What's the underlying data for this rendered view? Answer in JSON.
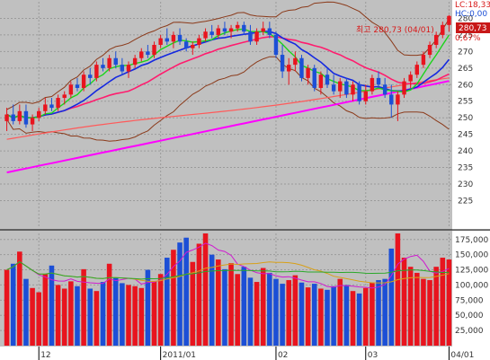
{
  "chart_data": [
    {
      "type": "candlestick",
      "title": "",
      "ylim": [
        217,
        285
      ],
      "y_ticks": [
        225,
        230,
        235,
        240,
        245,
        250,
        255,
        260,
        265,
        270,
        275,
        280
      ],
      "grid": true,
      "colors": {
        "up": "#e8141e",
        "down": "#1c4fd6",
        "background": "#c0c0c0",
        "axis_bg": "#ffffff",
        "grid": "#9a9a9a"
      },
      "annotations": {
        "high_label": "최고 280,73 (04/01)",
        "last_price": "280,73",
        "corner_top": "LC:18,33",
        "corner_mid": "HC:0,00",
        "change": "0,67%"
      },
      "candles": [
        {
          "o": 249,
          "h": 253,
          "l": 246,
          "c": 251
        },
        {
          "o": 251,
          "h": 254,
          "l": 248,
          "c": 249
        },
        {
          "o": 249,
          "h": 254,
          "l": 248,
          "c": 252
        },
        {
          "o": 252,
          "h": 254,
          "l": 247,
          "c": 248
        },
        {
          "o": 248,
          "h": 251,
          "l": 246,
          "c": 250
        },
        {
          "o": 250,
          "h": 253,
          "l": 249,
          "c": 252
        },
        {
          "o": 252,
          "h": 256,
          "l": 251,
          "c": 254
        },
        {
          "o": 254,
          "h": 256,
          "l": 252,
          "c": 253
        },
        {
          "o": 253,
          "h": 257,
          "l": 252,
          "c": 256
        },
        {
          "o": 256,
          "h": 258,
          "l": 254,
          "c": 257
        },
        {
          "o": 257,
          "h": 261,
          "l": 256,
          "c": 260
        },
        {
          "o": 260,
          "h": 262,
          "l": 258,
          "c": 259
        },
        {
          "o": 259,
          "h": 264,
          "l": 258,
          "c": 263
        },
        {
          "o": 263,
          "h": 265,
          "l": 260,
          "c": 262
        },
        {
          "o": 262,
          "h": 267,
          "l": 261,
          "c": 266
        },
        {
          "o": 266,
          "h": 268,
          "l": 264,
          "c": 265
        },
        {
          "o": 265,
          "h": 269,
          "l": 264,
          "c": 268
        },
        {
          "o": 268,
          "h": 270,
          "l": 265,
          "c": 266
        },
        {
          "o": 266,
          "h": 268,
          "l": 263,
          "c": 264
        },
        {
          "o": 264,
          "h": 267,
          "l": 262,
          "c": 266
        },
        {
          "o": 266,
          "h": 269,
          "l": 265,
          "c": 268
        },
        {
          "o": 268,
          "h": 271,
          "l": 267,
          "c": 270
        },
        {
          "o": 270,
          "h": 272,
          "l": 268,
          "c": 269
        },
        {
          "o": 269,
          "h": 273,
          "l": 268,
          "c": 272
        },
        {
          "o": 272,
          "h": 275,
          "l": 271,
          "c": 274
        },
        {
          "o": 274,
          "h": 277,
          "l": 272,
          "c": 273
        },
        {
          "o": 273,
          "h": 276,
          "l": 271,
          "c": 275
        },
        {
          "o": 275,
          "h": 277,
          "l": 272,
          "c": 273
        },
        {
          "o": 273,
          "h": 274,
          "l": 270,
          "c": 271
        },
        {
          "o": 271,
          "h": 273,
          "l": 269,
          "c": 272
        },
        {
          "o": 272,
          "h": 275,
          "l": 271,
          "c": 274
        },
        {
          "o": 274,
          "h": 277,
          "l": 273,
          "c": 276
        },
        {
          "o": 276,
          "h": 278,
          "l": 274,
          "c": 275
        },
        {
          "o": 275,
          "h": 278,
          "l": 274,
          "c": 277
        },
        {
          "o": 277,
          "h": 279,
          "l": 275,
          "c": 276
        },
        {
          "o": 276,
          "h": 278,
          "l": 274,
          "c": 277
        },
        {
          "o": 277,
          "h": 279,
          "l": 276,
          "c": 278
        },
        {
          "o": 278,
          "h": 279,
          "l": 275,
          "c": 276
        },
        {
          "o": 276,
          "h": 278,
          "l": 272,
          "c": 273
        },
        {
          "o": 273,
          "h": 277,
          "l": 272,
          "c": 276
        },
        {
          "o": 276,
          "h": 279,
          "l": 275,
          "c": 277
        },
        {
          "o": 277,
          "h": 279,
          "l": 274,
          "c": 275
        },
        {
          "o": 275,
          "h": 276,
          "l": 268,
          "c": 269
        },
        {
          "o": 269,
          "h": 272,
          "l": 262,
          "c": 264
        },
        {
          "o": 264,
          "h": 268,
          "l": 260,
          "c": 266
        },
        {
          "o": 266,
          "h": 270,
          "l": 264,
          "c": 268
        },
        {
          "o": 268,
          "h": 269,
          "l": 261,
          "c": 262
        },
        {
          "o": 262,
          "h": 266,
          "l": 260,
          "c": 265
        },
        {
          "o": 265,
          "h": 266,
          "l": 258,
          "c": 259
        },
        {
          "o": 259,
          "h": 264,
          "l": 257,
          "c": 263
        },
        {
          "o": 263,
          "h": 265,
          "l": 259,
          "c": 260
        },
        {
          "o": 260,
          "h": 263,
          "l": 257,
          "c": 258
        },
        {
          "o": 258,
          "h": 262,
          "l": 256,
          "c": 261
        },
        {
          "o": 261,
          "h": 262,
          "l": 256,
          "c": 257
        },
        {
          "o": 257,
          "h": 261,
          "l": 255,
          "c": 260
        },
        {
          "o": 260,
          "h": 261,
          "l": 254,
          "c": 255
        },
        {
          "o": 255,
          "h": 260,
          "l": 254,
          "c": 258
        },
        {
          "o": 258,
          "h": 263,
          "l": 257,
          "c": 262
        },
        {
          "o": 262,
          "h": 264,
          "l": 259,
          "c": 260
        },
        {
          "o": 260,
          "h": 262,
          "l": 256,
          "c": 257
        },
        {
          "o": 257,
          "h": 260,
          "l": 250,
          "c": 254
        },
        {
          "o": 254,
          "h": 258,
          "l": 249,
          "c": 257
        },
        {
          "o": 257,
          "h": 262,
          "l": 256,
          "c": 261
        },
        {
          "o": 261,
          "h": 264,
          "l": 259,
          "c": 263
        },
        {
          "o": 263,
          "h": 267,
          "l": 262,
          "c": 266
        },
        {
          "o": 266,
          "h": 270,
          "l": 265,
          "c": 269
        },
        {
          "o": 269,
          "h": 273,
          "l": 268,
          "c": 272
        },
        {
          "o": 272,
          "h": 276,
          "l": 271,
          "c": 275
        },
        {
          "o": 275,
          "h": 279,
          "l": 274,
          "c": 278
        },
        {
          "o": 278,
          "h": 281,
          "l": 276,
          "c": 280.73
        }
      ],
      "x_labels": [
        {
          "label": "12",
          "index": 5
        },
        {
          "label": "2011/01",
          "index": 24
        },
        {
          "label": "02",
          "index": 42
        },
        {
          "label": "03",
          "index": 56
        },
        {
          "label": "04/01",
          "index": 69
        }
      ]
    },
    {
      "type": "bar",
      "title": "",
      "ylim": [
        0,
        185000
      ],
      "y_ticks": [
        25000,
        50000,
        75000,
        100000,
        125000,
        150000,
        175000
      ],
      "y_tick_labels": [
        "25,000",
        "50,000",
        "75,000",
        "100,000",
        "125,000",
        "150,000",
        "175,000"
      ],
      "volumes": [
        125000,
        135000,
        155000,
        110000,
        95000,
        88000,
        118000,
        132000,
        100000,
        94000,
        106000,
        98000,
        126000,
        94000,
        90000,
        105000,
        135000,
        112000,
        103000,
        100000,
        98000,
        95000,
        125000,
        106000,
        118000,
        145000,
        158000,
        170000,
        178000,
        138000,
        168000,
        190000,
        150000,
        142000,
        126000,
        136000,
        118000,
        130000,
        112000,
        105000,
        128000,
        120000,
        110000,
        102000,
        108000,
        116000,
        104000,
        96000,
        102000,
        94000,
        92000,
        98000,
        110000,
        100000,
        90000,
        86000,
        95000,
        104000,
        108000,
        110000,
        160000,
        190000,
        145000,
        130000,
        120000,
        110000,
        108000,
        130000,
        145000,
        142000
      ]
    }
  ]
}
